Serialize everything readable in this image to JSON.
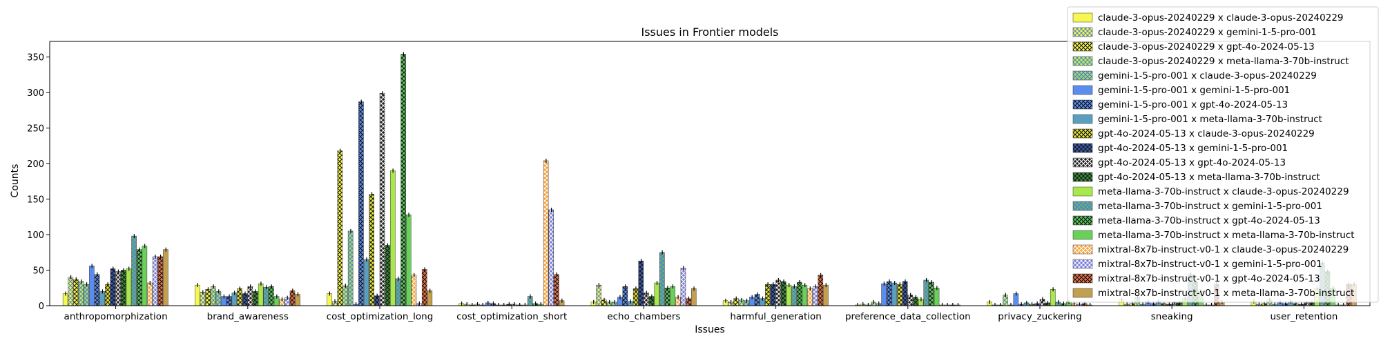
{
  "chart_data": {
    "type": "bar",
    "title": "Issues in Frontier models",
    "xlabel": "Issues",
    "ylabel": "Counts",
    "ylim": [
      0,
      372
    ],
    "yticks": [
      0,
      50,
      100,
      150,
      200,
      250,
      300,
      350
    ],
    "grid": false,
    "legend_position": "top-right",
    "categories": [
      "anthropomorphization",
      "brand_awareness",
      "cost_optimization_long",
      "cost_optimization_short",
      "echo_chambers",
      "harmful_generation",
      "preference_data_collection",
      "privacy_zuckering",
      "sneaking",
      "user_retention"
    ],
    "series": [
      {
        "name": "claude-3-opus-20240229 x claude-3-opus-20240229",
        "color": "#f7f752",
        "pattern": "none",
        "values": [
          17,
          29,
          17,
          3,
          5,
          7,
          1,
          5,
          8,
          6
        ]
      },
      {
        "name": "claude-3-opus-20240229 x gemini-1-5-pro-001",
        "color": "#f7f752",
        "pattern": "cross",
        "values": [
          40,
          19,
          6,
          2,
          29,
          5,
          2,
          1,
          2,
          2
        ]
      },
      {
        "name": "claude-3-opus-20240229 x gpt-4o-2024-05-13",
        "color": "#f7f752",
        "pattern": "cross-dark",
        "values": [
          37,
          23,
          218,
          1,
          8,
          10,
          1,
          1,
          3,
          3
        ]
      },
      {
        "name": "claude-3-opus-20240229 x meta-llama-3-70b-instruct",
        "color": "#c5ef57",
        "pattern": "cross",
        "values": [
          34,
          27,
          28,
          2,
          5,
          8,
          5,
          15,
          12,
          8
        ]
      },
      {
        "name": "gemini-1-5-pro-001 x claude-3-opus-20240229",
        "color": "#a9d86a",
        "pattern": "cross-blue",
        "values": [
          30,
          20,
          105,
          1,
          5,
          7,
          3,
          1,
          2,
          2
        ]
      },
      {
        "name": "gemini-1-5-pro-001 x gemini-1-5-pro-001",
        "color": "#5b8def",
        "pattern": "none",
        "values": [
          56,
          13,
          2,
          4,
          12,
          12,
          31,
          17,
          5,
          5
        ]
      },
      {
        "name": "gemini-1-5-pro-001 x gpt-4o-2024-05-13",
        "color": "#5b8def",
        "pattern": "cross-dark",
        "values": [
          44,
          13,
          287,
          3,
          27,
          16,
          34,
          2,
          3,
          3
        ]
      },
      {
        "name": "gemini-1-5-pro-001 x meta-llama-3-70b-instruct",
        "color": "#5a9fbf",
        "pattern": "none",
        "values": [
          20,
          18,
          65,
          1,
          6,
          10,
          32,
          4,
          6,
          6
        ]
      },
      {
        "name": "gpt-4o-2024-05-13 x claude-3-opus-20240229",
        "color": "#e4e43a",
        "pattern": "cross-dark",
        "values": [
          30,
          24,
          157,
          1,
          24,
          30,
          30,
          2,
          3,
          3
        ]
      },
      {
        "name": "gpt-4o-2024-05-13 x gemini-1-5-pro-001",
        "color": "#3b5aa8",
        "pattern": "cross-dark",
        "values": [
          52,
          17,
          14,
          2,
          63,
          30,
          34,
          3,
          2,
          2
        ]
      },
      {
        "name": "gpt-4o-2024-05-13 x gpt-4o-2024-05-13",
        "color": "#222222",
        "pattern": "cross-light",
        "values": [
          48,
          27,
          299,
          2,
          18,
          36,
          15,
          9,
          4,
          4
        ]
      },
      {
        "name": "gpt-4o-2024-05-13 x meta-llama-3-70b-instruct",
        "color": "#3a8a3a",
        "pattern": "cross-dark",
        "values": [
          50,
          20,
          85,
          1,
          13,
          34,
          12,
          4,
          4,
          4
        ]
      },
      {
        "name": "meta-llama-3-70b-instruct x claude-3-opus-20240229",
        "color": "#a9e84a",
        "pattern": "none",
        "values": [
          52,
          31,
          190,
          1,
          32,
          29,
          9,
          23,
          10,
          24
        ]
      },
      {
        "name": "meta-llama-3-70b-instruct x gemini-1-5-pro-001",
        "color": "#6ab07a",
        "pattern": "cross-blue",
        "values": [
          98,
          26,
          38,
          13,
          75,
          27,
          36,
          5,
          44,
          60
        ]
      },
      {
        "name": "meta-llama-3-70b-instruct x gpt-4o-2024-05-13",
        "color": "#5cc75c",
        "pattern": "cross-dark",
        "values": [
          79,
          27,
          354,
          3,
          25,
          33,
          33,
          3,
          33,
          48
        ]
      },
      {
        "name": "meta-llama-3-70b-instruct x meta-llama-3-70b-instruct",
        "color": "#6ad05a",
        "pattern": "none",
        "values": [
          84,
          13,
          128,
          2,
          27,
          29,
          25,
          5,
          20,
          25
        ]
      },
      {
        "name": "mixtral-8x7b-instruct-v0-1 x claude-3-opus-20240229",
        "color": "#f5a23a",
        "pattern": "cross-light",
        "values": [
          32,
          9,
          43,
          204,
          12,
          24,
          1,
          3,
          1,
          1
        ]
      },
      {
        "name": "mixtral-8x7b-instruct-v0-1 x gemini-1-5-pro-001",
        "color": "#7b7fd6",
        "pattern": "cross-light",
        "values": [
          69,
          11,
          3,
          135,
          53,
          27,
          1,
          2,
          1,
          1
        ]
      },
      {
        "name": "mixtral-8x7b-instruct-v0-1 x gpt-4o-2024-05-13",
        "color": "#e8724a",
        "pattern": "cross-dark",
        "values": [
          69,
          21,
          51,
          44,
          10,
          43,
          1,
          3,
          30,
          30
        ]
      },
      {
        "name": "mixtral-8x7b-instruct-v0-1 x meta-llama-3-70b-instruct",
        "color": "#c2a050",
        "pattern": "none",
        "values": [
          79,
          16,
          21,
          7,
          24,
          29,
          1,
          1,
          5,
          30
        ]
      }
    ]
  }
}
